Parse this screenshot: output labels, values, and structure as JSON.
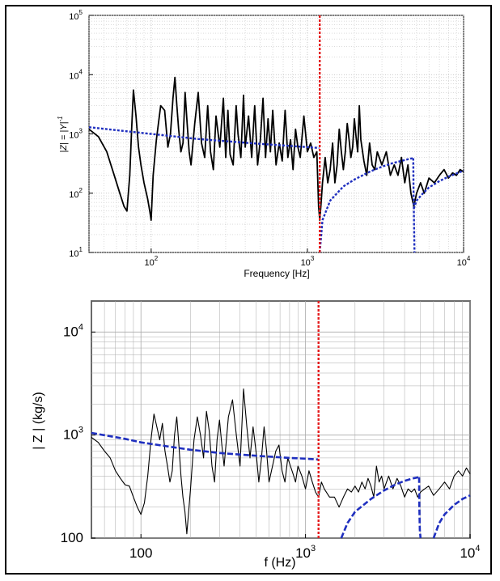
{
  "chart_data": [
    {
      "type": "line",
      "panel": "top",
      "xlabel": "Frequency [Hz]",
      "ylabel": "|Z| = |Y|^{-1}",
      "xscale": "log",
      "yscale": "log",
      "xlim": [
        40,
        10000
      ],
      "ylim": [
        10,
        100000
      ],
      "grid": true,
      "x_ticks": [
        {
          "v": 100,
          "base": "10",
          "exp": "2"
        },
        {
          "v": 1000,
          "base": "10",
          "exp": "3"
        },
        {
          "v": 10000,
          "base": "10",
          "exp": "4"
        }
      ],
      "y_ticks": [
        {
          "v": 10,
          "base": "10",
          "exp": "1"
        },
        {
          "v": 100,
          "base": "10",
          "exp": "2"
        },
        {
          "v": 1000,
          "base": "10",
          "exp": "3"
        },
        {
          "v": 10000,
          "base": "10",
          "exp": "4"
        },
        {
          "v": 100000,
          "base": "10",
          "exp": "5"
        }
      ],
      "vline": {
        "x": 1200,
        "color": "#e41a1c"
      },
      "series": [
        {
          "style": "measured",
          "color": "#000000",
          "x": [
            40,
            46,
            52,
            58,
            63,
            67,
            70,
            73,
            75,
            77,
            80,
            83,
            86,
            90,
            95,
            98,
            100,
            103,
            108,
            115,
            122,
            128,
            133,
            138,
            142,
            146,
            150,
            155,
            160,
            165,
            170,
            175,
            180,
            190,
            200,
            210,
            220,
            230,
            240,
            250,
            260,
            275,
            290,
            300,
            310,
            320,
            335,
            350,
            360,
            375,
            390,
            400,
            420,
            440,
            460,
            480,
            500,
            520,
            540,
            560,
            580,
            600,
            630,
            660,
            690,
            720,
            750,
            780,
            810,
            840,
            870,
            900,
            950,
            1000,
            1050,
            1100,
            1150,
            1180,
            1200,
            1220,
            1250,
            1300,
            1350,
            1400,
            1450,
            1500,
            1550,
            1600,
            1650,
            1700,
            1750,
            1800,
            1850,
            1900,
            1950,
            2000,
            2050,
            2100,
            2150,
            2200,
            2300,
            2400,
            2500,
            2600,
            2700,
            2800,
            3000,
            3200,
            3400,
            3600,
            3800,
            4000,
            4200,
            4400,
            4600,
            4800,
            5000,
            5300,
            5600,
            6000,
            6500,
            7000,
            7500,
            8000,
            8500,
            9000,
            9500,
            10000
          ],
          "y": [
            1200,
            900,
            500,
            200,
            100,
            60,
            50,
            200,
            1200,
            5500,
            2000,
            600,
            300,
            150,
            80,
            50,
            35,
            200,
            800,
            3000,
            2500,
            600,
            1000,
            4000,
            9000,
            3000,
            1200,
            500,
            700,
            5000,
            1500,
            500,
            300,
            1500,
            5000,
            700,
            400,
            3000,
            500,
            250,
            2000,
            600,
            4000,
            400,
            2500,
            450,
            300,
            3000,
            1000,
            400,
            4500,
            600,
            2000,
            400,
            3000,
            300,
            800,
            4000,
            400,
            1800,
            500,
            2500,
            300,
            700,
            350,
            2500,
            400,
            800,
            250,
            1200,
            600,
            400,
            2000,
            500,
            700,
            400,
            500,
            60,
            35,
            60,
            150,
            400,
            150,
            250,
            700,
            150,
            300,
            1200,
            500,
            250,
            500,
            1500,
            800,
            400,
            600,
            1800,
            900,
            500,
            3000,
            800,
            350,
            200,
            700,
            300,
            250,
            500,
            300,
            500,
            200,
            300,
            200,
            400,
            150,
            300,
            100,
            60,
            100,
            150,
            100,
            180,
            150,
            200,
            250,
            180,
            220,
            200,
            250,
            230
          ]
        },
        {
          "style": "model",
          "color": "#1f2fbf",
          "x": [
            40,
            100,
            200,
            500,
            1000,
            1190
          ],
          "y": [
            1300,
            1000,
            820,
            680,
            600,
            580
          ]
        },
        {
          "style": "model",
          "color": "#1f2fbf",
          "x": [
            1200,
            1250,
            1400,
            1700,
            2000,
            2500,
            3000,
            3500,
            4000,
            4500,
            4750
          ],
          "y": [
            10,
            35,
            75,
            130,
            170,
            230,
            280,
            320,
            350,
            380,
            390
          ]
        },
        {
          "style": "model",
          "color": "#1f2fbf",
          "x": [
            4760,
            4780,
            4850
          ],
          "y": [
            390,
            120,
            10
          ]
        },
        {
          "style": "model",
          "color": "#1f2fbf",
          "x": [
            4800,
            5000,
            5500,
            6000,
            7000,
            8000,
            9000,
            10000
          ],
          "y": [
            55,
            75,
            100,
            125,
            160,
            190,
            215,
            240
          ]
        }
      ]
    },
    {
      "type": "line",
      "panel": "bottom",
      "xlabel": "f (Hz)",
      "ylabel": "| Z | (kg/s)",
      "xscale": "log",
      "yscale": "log",
      "xlim": [
        50,
        10000
      ],
      "ylim": [
        100,
        20000
      ],
      "grid": true,
      "x_ticks": [
        {
          "v": 100,
          "label": "100"
        },
        {
          "v": 1000,
          "base": "10",
          "exp": "3"
        },
        {
          "v": 10000,
          "base": "10",
          "exp": "4"
        }
      ],
      "y_ticks": [
        {
          "v": 100,
          "label": "100"
        },
        {
          "v": 1000,
          "base": "10",
          "exp": "3"
        },
        {
          "v": 10000,
          "base": "10",
          "exp": "4"
        }
      ],
      "vline": {
        "x": 1200,
        "color": "#e41a1c"
      },
      "series": [
        {
          "style": "measured",
          "color": "#000000",
          "x": [
            50,
            55,
            60,
            65,
            70,
            75,
            80,
            85,
            90,
            95,
            100,
            105,
            110,
            115,
            120,
            125,
            130,
            135,
            140,
            145,
            150,
            155,
            160,
            165,
            170,
            175,
            180,
            185,
            190,
            200,
            210,
            220,
            230,
            240,
            250,
            260,
            270,
            280,
            290,
            300,
            310,
            320,
            340,
            360,
            380,
            400,
            420,
            440,
            460,
            480,
            500,
            520,
            540,
            560,
            580,
            600,
            630,
            660,
            690,
            720,
            750,
            780,
            810,
            840,
            870,
            900,
            950,
            1000,
            1050,
            1100,
            1150,
            1200,
            1250,
            1300,
            1400,
            1500,
            1600,
            1700,
            1800,
            1900,
            2000,
            2100,
            2200,
            2300,
            2400,
            2500,
            2600,
            2700,
            2800,
            2900,
            3000,
            3200,
            3400,
            3600,
            3800,
            4000,
            4200,
            4400,
            4600,
            4800,
            5000,
            5300,
            5600,
            6000,
            6500,
            7000,
            7500,
            8000,
            8500,
            9000,
            9500,
            10000
          ],
          "y": [
            950,
            850,
            700,
            600,
            450,
            380,
            330,
            320,
            250,
            200,
            170,
            220,
            400,
            900,
            1600,
            1200,
            900,
            1300,
            700,
            500,
            350,
            450,
            1000,
            1500,
            800,
            400,
            250,
            180,
            110,
            300,
            900,
            1500,
            1000,
            600,
            1700,
            1100,
            500,
            350,
            900,
            1400,
            800,
            500,
            1500,
            2200,
            1000,
            500,
            2800,
            1200,
            600,
            1200,
            700,
            350,
            600,
            1200,
            700,
            350,
            500,
            700,
            800,
            450,
            350,
            600,
            500,
            420,
            350,
            500,
            400,
            300,
            450,
            350,
            280,
            250,
            350,
            300,
            250,
            250,
            200,
            250,
            300,
            280,
            320,
            280,
            350,
            300,
            380,
            320,
            250,
            500,
            350,
            400,
            300,
            400,
            300,
            380,
            320,
            250,
            300,
            280,
            300,
            250,
            280,
            300,
            320,
            260,
            300,
            350,
            300,
            400,
            450,
            400,
            480,
            420
          ]
        },
        {
          "style": "model",
          "color": "#1f2fbf",
          "x": [
            50,
            80,
            100,
            150,
            200,
            300,
            500,
            800,
            1000,
            1190
          ],
          "y": [
            1050,
            920,
            850,
            770,
            720,
            670,
            630,
            600,
            590,
            580
          ]
        },
        {
          "style": "model",
          "color": "#1f2fbf",
          "x": [
            1650,
            1800,
            2000,
            2500,
            3000,
            3500,
            4000,
            4500,
            4900
          ],
          "y": [
            100,
            140,
            180,
            240,
            290,
            330,
            360,
            380,
            390
          ]
        },
        {
          "style": "model",
          "color": "#1f2fbf",
          "x": [
            4900,
            4920,
            4950,
            5000
          ],
          "y": [
            390,
            200,
            120,
            100
          ]
        },
        {
          "style": "model",
          "color": "#1f2fbf",
          "x": [
            6000,
            6500,
            7000,
            8000,
            9000,
            10000
          ],
          "y": [
            100,
            140,
            170,
            210,
            240,
            260
          ]
        }
      ]
    }
  ]
}
